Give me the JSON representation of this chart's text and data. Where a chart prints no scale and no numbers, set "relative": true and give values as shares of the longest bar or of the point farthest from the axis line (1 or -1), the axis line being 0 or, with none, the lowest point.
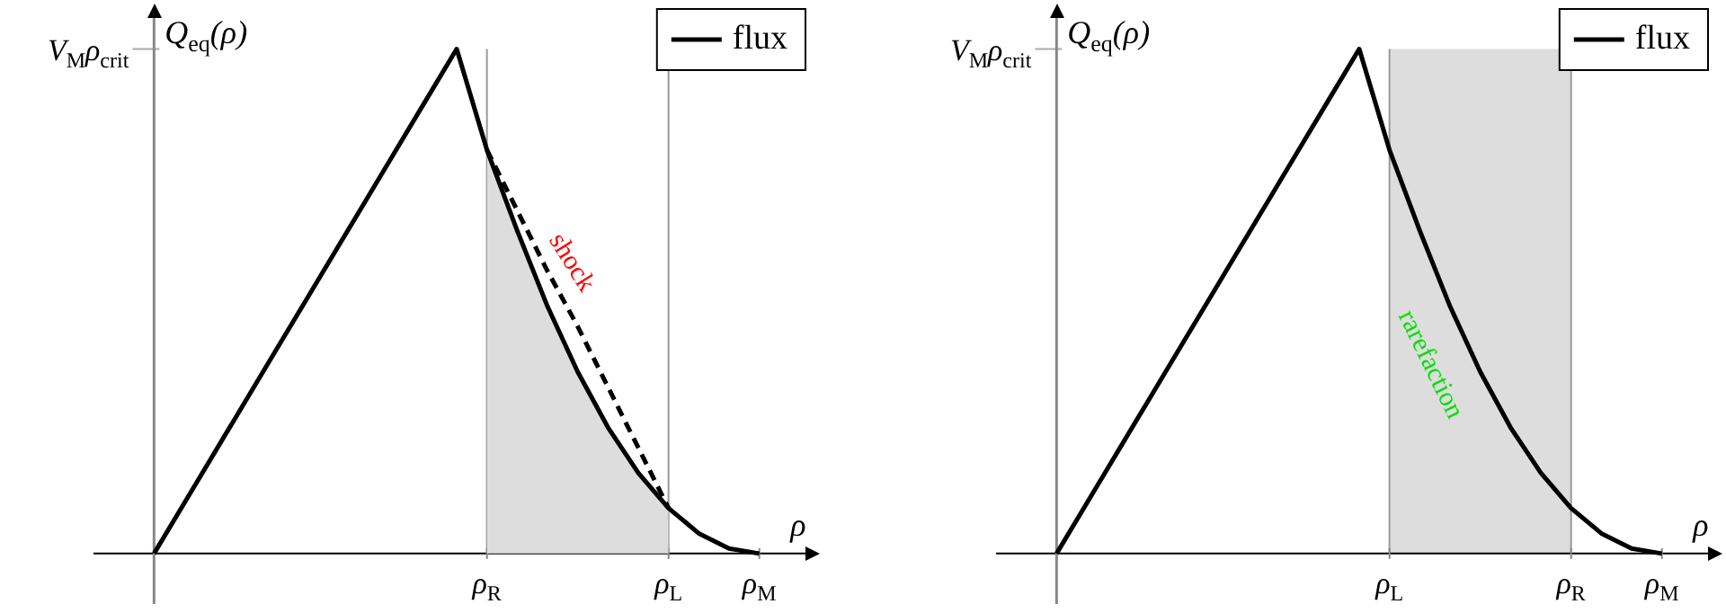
{
  "chart_data": [
    {
      "type": "line",
      "relative": true,
      "xlabel": "ρ",
      "ylabel": "Q$_{eq}$(ρ)",
      "legend": "top right",
      "marker": "none",
      "categories": [
        null,
        null,
        null,
        null,
        null,
        null,
        null,
        null,
        null,
        null,
        null,
        "ρ$_{R}$",
        null,
        null,
        null,
        null,
        null,
        "ρ$_{L}$",
        null,
        null,
        "ρ$_{M}$"
      ],
      "series": [
        {
          "name": "flux",
          "color": "#000000",
          "values": [
            0,
            0.1,
            0.2,
            0.3,
            0.4,
            0.5,
            0.6,
            0.7,
            0.8,
            0.9,
            1,
            0.8,
            0.64,
            0.49,
            0.36,
            0.25,
            0.16,
            0.09,
            0.04,
            0.01,
            0
          ]
        },
        {
          "color": "#000000",
          "line_style": "dashed",
          "values": [
            null,
            null,
            null,
            null,
            null,
            null,
            null,
            null,
            null,
            null,
            null,
            0.8,
            0.68,
            0.56,
            0.45,
            0.33,
            0.21,
            0.09,
            null,
            null,
            null
          ]
        },
        {
          "type": "area",
          "color": "#dddddd",
          "values": [
            null,
            null,
            null,
            null,
            null,
            null,
            null,
            null,
            null,
            null,
            null,
            0.8,
            0.64,
            0.49,
            0.36,
            0.25,
            0.16,
            0.09,
            null,
            null,
            null
          ]
        }
      ],
      "ref_lines": [
        {
          "axis": "x",
          "value": "ρ$_{R}$",
          "color": "#999999"
        },
        {
          "axis": "x",
          "value": "ρ$_{L}$",
          "color": "#999999"
        },
        {
          "axis": "y",
          "value": 1,
          "color": "#aaaaaa",
          "label": "V$_{M}$ρ$_{crit}$"
        }
      ],
      "annotations": [
        "shock"
      ]
    },
    {
      "type": "line",
      "relative": true,
      "xlabel": "ρ",
      "ylabel": "Q$_{eq}$(ρ)",
      "legend": "top right",
      "marker": "none",
      "categories": [
        null,
        null,
        null,
        null,
        null,
        null,
        null,
        null,
        null,
        null,
        null,
        "ρ$_{L}$",
        null,
        null,
        null,
        null,
        null,
        "ρ$_{R}$",
        null,
        null,
        "ρ$_{M}$"
      ],
      "series": [
        {
          "name": "flux",
          "color": "#000000",
          "values": [
            0,
            0.1,
            0.2,
            0.3,
            0.4,
            0.5,
            0.6,
            0.7,
            0.8,
            0.9,
            1,
            0.8,
            0.64,
            0.49,
            0.36,
            0.25,
            0.16,
            0.09,
            0.04,
            0.01,
            0
          ]
        }
      ],
      "bands": [
        {
          "axis": "x",
          "from": "ρ$_{L}$",
          "to": "ρ$_{R}$",
          "color": "#dddddd"
        }
      ],
      "ref_lines": [
        {
          "axis": "x",
          "value": "ρ$_{L}$",
          "color": "#999999"
        },
        {
          "axis": "x",
          "value": "ρ$_{R}$",
          "color": "#999999"
        },
        {
          "axis": "y",
          "value": 1,
          "color": "#aaaaaa",
          "label": "V$_{M}$ρ$_{crit}$"
        }
      ],
      "annotations": [
        "rarefaction"
      ]
    }
  ]
}
